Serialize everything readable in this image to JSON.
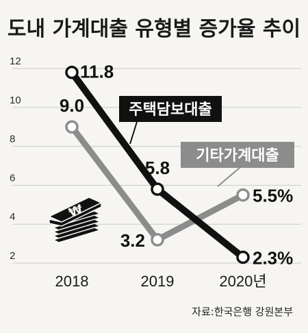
{
  "title": "도내 가계대출 유형별 증가율 추이",
  "source": "자료:한국은행 강원본부",
  "chart_data": {
    "type": "line",
    "categories": [
      "2018",
      "2019",
      "2020년"
    ],
    "yticks": [
      "2",
      "4",
      "6",
      "8",
      "10",
      "12"
    ],
    "ylim": [
      2,
      12
    ],
    "series": [
      {
        "name": "주택담보대출",
        "values": [
          11.8,
          5.8,
          2.3
        ],
        "labels": [
          "11.8",
          "5.8",
          "2.3%"
        ],
        "color": "#111111"
      },
      {
        "name": "기타가계대출",
        "values": [
          9.0,
          3.2,
          5.5
        ],
        "labels": [
          "9.0",
          "3.2",
          "5.5%"
        ],
        "color": "#8c8c8c"
      }
    ],
    "grid": true
  },
  "colors": {
    "background": "#f6f5f1",
    "grid": "#c9c9c9",
    "dark": "#111111",
    "gray": "#8c8c8c"
  },
  "icon": "money-stack-icon"
}
